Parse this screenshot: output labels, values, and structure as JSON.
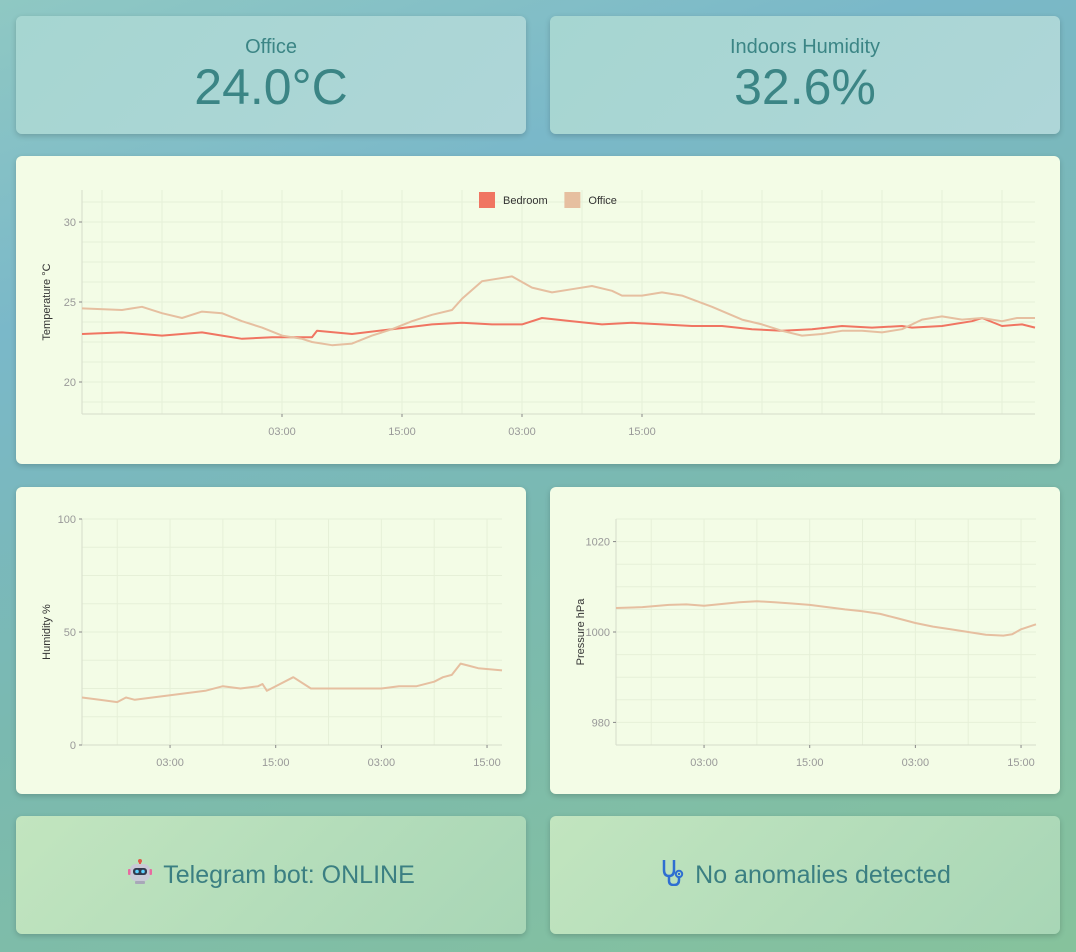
{
  "cards": {
    "office_temp": {
      "label": "Office",
      "value": "24.0°C"
    },
    "indoor_humidity": {
      "label": "Indoors Humidity",
      "value": "32.6%"
    }
  },
  "status": {
    "bot": {
      "icon": "robot-icon",
      "text": "Telegram bot: ONLINE"
    },
    "anomalies": {
      "icon": "stethoscope-icon",
      "text": "No anomalies detected"
    }
  },
  "colors": {
    "bedroom": "#f07562",
    "office": "#e6bfa0",
    "grid": "#e6f0d8",
    "axis_text": "#999999"
  },
  "chart_data": [
    {
      "type": "line",
      "ylabel": "Temperature °C",
      "ylim": [
        18,
        32
      ],
      "yticks": [
        20,
        25,
        30
      ],
      "xticks": [
        "03:00",
        "15:00",
        "03:00",
        "15:00"
      ],
      "xtick_hours": [
        6,
        18,
        30,
        42
      ],
      "xlim": [
        -14,
        81.3
      ],
      "legend": "top-center",
      "grid": true,
      "series": [
        {
          "name": "Bedroom",
          "color": "#f07562",
          "x": [
            -14,
            -10,
            -6,
            -4,
            -2,
            0,
            2,
            5,
            9,
            9.5,
            13,
            17,
            21,
            24,
            27,
            30,
            32,
            35,
            38,
            41,
            44,
            47,
            50,
            53,
            56,
            59,
            62,
            65,
            68,
            69,
            72,
            75,
            76,
            78,
            80,
            81.3
          ],
          "y": [
            23.0,
            23.1,
            22.9,
            23.0,
            23.1,
            22.9,
            22.7,
            22.8,
            22.8,
            23.2,
            23.0,
            23.3,
            23.6,
            23.7,
            23.6,
            23.6,
            24.0,
            23.8,
            23.6,
            23.7,
            23.6,
            23.5,
            23.5,
            23.3,
            23.2,
            23.3,
            23.5,
            23.4,
            23.5,
            23.4,
            23.5,
            23.8,
            24.0,
            23.5,
            23.6,
            23.4
          ]
        },
        {
          "name": "Office",
          "color": "#e6bfa0",
          "x": [
            -14,
            -10,
            -8,
            -6,
            -4,
            -2,
            0,
            2,
            4,
            6,
            8,
            9,
            11,
            13,
            15,
            17,
            19,
            21,
            23,
            24,
            26,
            29,
            31,
            33,
            35,
            37,
            39,
            40,
            42,
            44,
            46,
            49,
            52,
            54,
            56,
            58,
            60,
            62,
            64,
            66,
            68,
            70,
            72,
            74,
            76,
            78,
            79.5,
            81.3
          ],
          "y": [
            24.6,
            24.5,
            24.7,
            24.3,
            24.0,
            24.4,
            24.3,
            23.8,
            23.4,
            22.9,
            22.7,
            22.5,
            22.3,
            22.4,
            22.9,
            23.3,
            23.8,
            24.2,
            24.5,
            25.2,
            26.3,
            26.6,
            25.9,
            25.6,
            25.8,
            26.0,
            25.7,
            25.4,
            25.4,
            25.6,
            25.4,
            24.7,
            23.9,
            23.6,
            23.2,
            22.9,
            23.0,
            23.2,
            23.2,
            23.1,
            23.3,
            23.9,
            24.1,
            23.9,
            24.0,
            23.8,
            24.0,
            24.0
          ]
        }
      ]
    },
    {
      "type": "line",
      "ylabel": "Humidity %",
      "ylim": [
        0,
        100
      ],
      "yticks": [
        0,
        50,
        100
      ],
      "xticks": [
        "03:00",
        "15:00",
        "03:00",
        "15:00"
      ],
      "xtick_hours": [
        6,
        18,
        30,
        42
      ],
      "xlim": [
        -4,
        43.7
      ],
      "grid": true,
      "series": [
        {
          "name": "Office",
          "color": "#e6bfa0",
          "x": [
            -4,
            -2,
            0,
            1,
            2,
            4,
            6,
            8,
            10,
            12,
            14,
            16,
            16.5,
            17,
            18,
            20,
            22,
            24,
            26,
            28,
            30,
            32,
            34,
            36,
            37,
            38,
            39,
            40,
            41,
            43.7
          ],
          "y": [
            21,
            20,
            19,
            21,
            20,
            21,
            22,
            23,
            24,
            26,
            25,
            26,
            27,
            24,
            26,
            30,
            25,
            25,
            25,
            25,
            25,
            26,
            26,
            28,
            30,
            31,
            36,
            35,
            34,
            33
          ]
        }
      ]
    },
    {
      "type": "line",
      "ylabel": "Pressure hPa",
      "ylim": [
        975,
        1025
      ],
      "yticks": [
        980,
        1000,
        1020
      ],
      "xticks": [
        "03:00",
        "15:00",
        "03:00",
        "15:00"
      ],
      "xtick_hours": [
        6,
        18,
        30,
        42
      ],
      "xlim": [
        -4,
        43.7
      ],
      "grid": true,
      "series": [
        {
          "name": "Office",
          "color": "#e6bfa0",
          "x": [
            -4,
            -1,
            2,
            4,
            6,
            8,
            10,
            12,
            14,
            16,
            18,
            20,
            22,
            24,
            26,
            28,
            30,
            32,
            34,
            36,
            38,
            40,
            41,
            42,
            43.7
          ],
          "y": [
            1005.3,
            1005.5,
            1006.0,
            1006.1,
            1005.8,
            1006.2,
            1006.6,
            1006.8,
            1006.6,
            1006.3,
            1006.0,
            1005.5,
            1005.0,
            1004.6,
            1004.0,
            1003.0,
            1002.0,
            1001.2,
            1000.6,
            1000.0,
            999.4,
            999.2,
            999.5,
            1000.6,
            1001.7
          ]
        }
      ]
    }
  ]
}
